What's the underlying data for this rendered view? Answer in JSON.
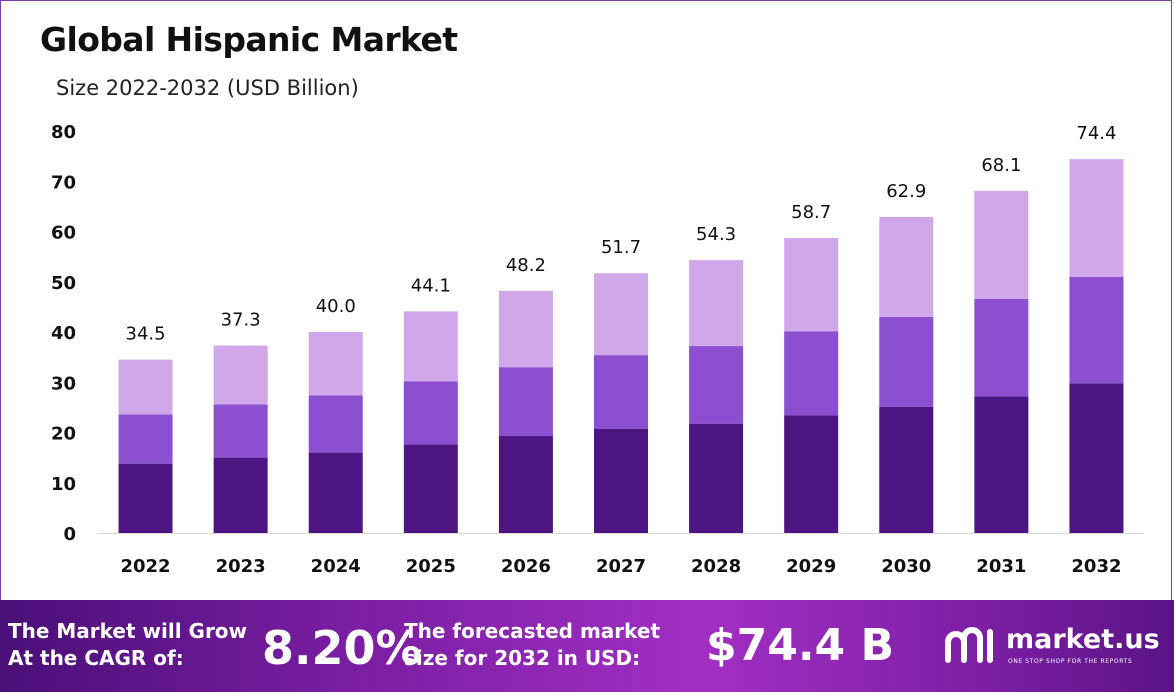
{
  "chart_data": {
    "type": "bar",
    "stacked": true,
    "title": "Global Hispanic Market",
    "subtitle": "Size 2022-2032  (USD Billion)",
    "categories": [
      "2022",
      "2023",
      "2024",
      "2025",
      "2026",
      "2027",
      "2028",
      "2029",
      "2030",
      "2031",
      "2032"
    ],
    "totals": [
      "34.5",
      "37.3",
      "40.0",
      "44.1",
      "48.2",
      "51.7",
      "54.3",
      "58.7",
      "62.9",
      "68.1",
      "74.4"
    ],
    "series": [
      {
        "values": [
          13.8,
          15.0,
          16.0,
          17.6,
          19.3,
          20.7,
          21.7,
          23.4,
          25.1,
          27.2,
          29.8
        ],
        "color": "#4c1582"
      },
      {
        "values": [
          9.8,
          10.6,
          11.4,
          12.6,
          13.7,
          14.7,
          15.5,
          16.7,
          17.9,
          19.4,
          21.2
        ],
        "color": "#8b4fcf"
      },
      {
        "values": [
          10.9,
          11.7,
          12.6,
          13.9,
          15.2,
          16.3,
          17.1,
          18.6,
          19.9,
          21.5,
          23.4
        ],
        "color": "#d0a8ea"
      }
    ],
    "ylim": [
      0,
      80
    ],
    "yticks": [
      0,
      10,
      20,
      30,
      40,
      50,
      60,
      70,
      80
    ],
    "grid": false,
    "legend": "none"
  },
  "footer": {
    "cagr_label_line1": "The Market will Grow",
    "cagr_label_line2": "At the CAGR of:",
    "cagr_value": "8.20%",
    "forecast_label_line1": "The forecasted market",
    "forecast_label_line2": "size for 2032 in USD:",
    "forecast_value": "$74.4 B"
  },
  "brand": {
    "name": "market.us",
    "tagline": "ONE STOP SHOP FOR THE REPORTS",
    "logo_icon": "market-us-logo-icon"
  },
  "colors": {
    "footer_bg": "#8a27b4",
    "frame_border": "#7b3fa0"
  }
}
